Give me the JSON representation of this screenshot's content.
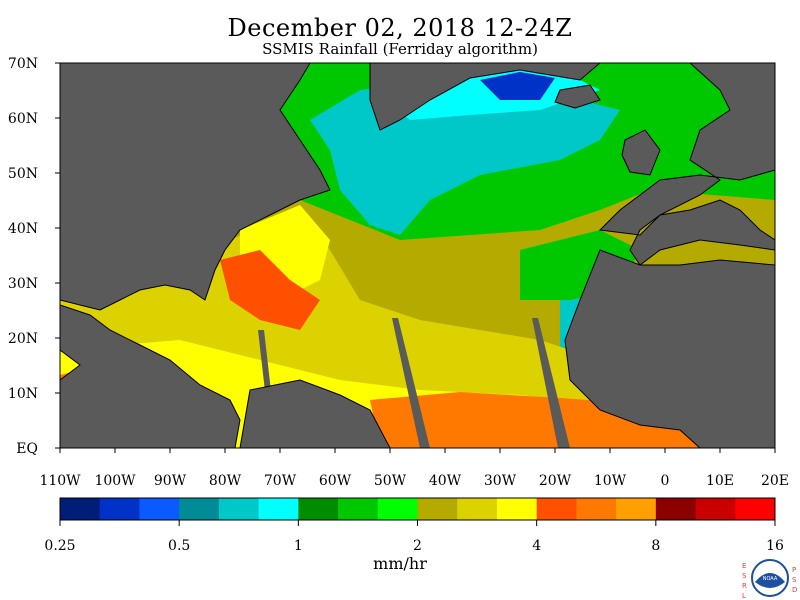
{
  "header": {
    "title": "December 02, 2018 12-24Z",
    "subtitle": "SSMIS Rainfall (Ferriday algorithm)"
  },
  "map": {
    "lat_labels": [
      "70N",
      "60N",
      "50N",
      "40N",
      "30N",
      "20N",
      "10N",
      "EQ"
    ],
    "lon_labels": [
      "110W",
      "100W",
      "90W",
      "80W",
      "70W",
      "60W",
      "50W",
      "40W",
      "30W",
      "20W",
      "10W",
      "0",
      "10E",
      "20E"
    ],
    "land_color": "#5a5a5a",
    "extent": {
      "lon": [
        -110,
        20
      ],
      "lat": [
        0,
        70
      ]
    }
  },
  "colorbar": {
    "colors": [
      "#001e78",
      "#0032c8",
      "#0a5aff",
      "#008c96",
      "#00c8c8",
      "#00ffff",
      "#008c00",
      "#00c800",
      "#00ff00",
      "#b4aa00",
      "#dcd200",
      "#ffff00",
      "#ff5000",
      "#ff7800",
      "#ffa000",
      "#8c0000",
      "#c80000",
      "#ff0000"
    ],
    "tick_labels": [
      "0.25",
      "0.5",
      "1",
      "2",
      "4",
      "8",
      "16"
    ],
    "units": "mm/hr"
  },
  "logo": {
    "left_letters": [
      "E",
      "S",
      "R",
      "L"
    ],
    "right_letters": [
      "P",
      "S",
      "D"
    ],
    "center": "NOAA",
    "colors": {
      "ring": "#1e4fa0",
      "inner": "#ffffff",
      "letters": "#e04040"
    }
  }
}
